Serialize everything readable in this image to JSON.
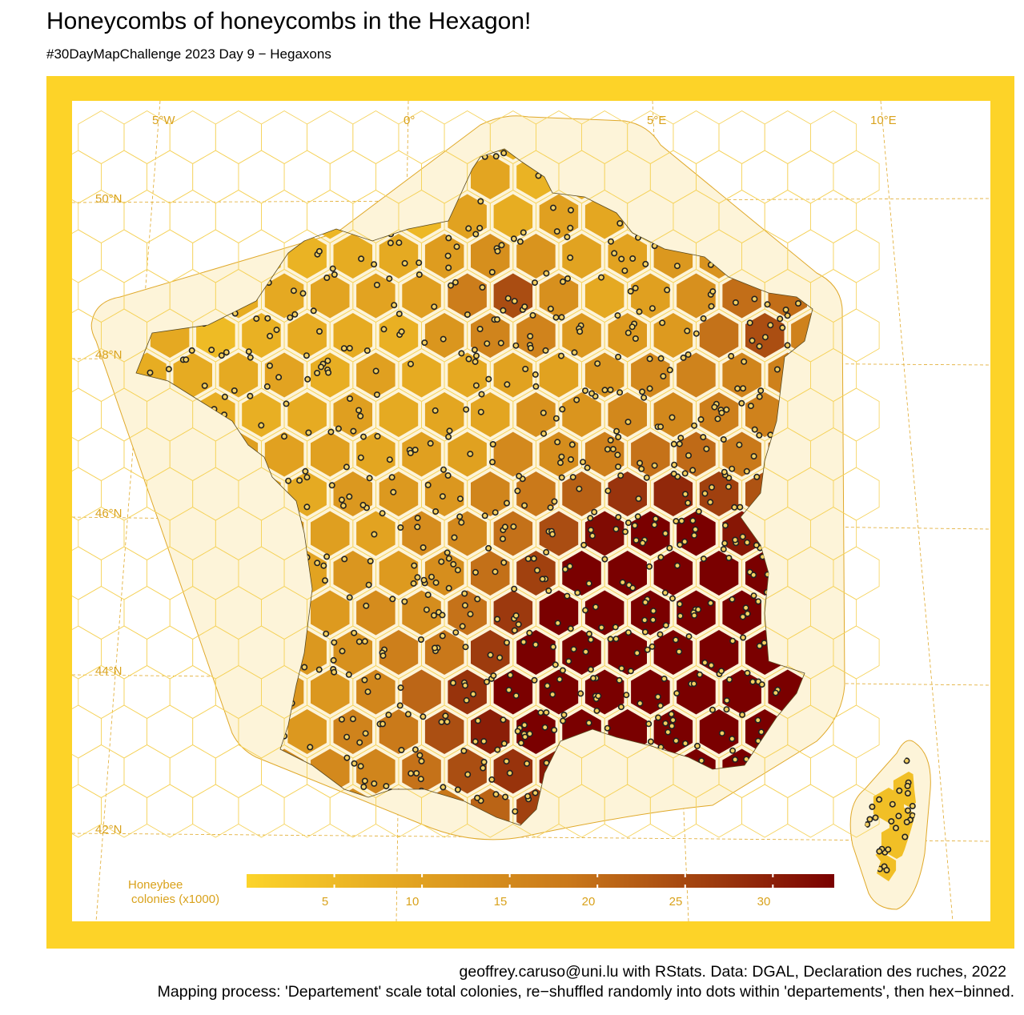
{
  "header": {
    "title": "Honeycombs of honeycombs in the Hexagon!",
    "subtitle": "#30DayMapChallenge 2023 Day 9 − Hegaxons"
  },
  "map": {
    "longitude_labels": [
      "5°W",
      "0°",
      "5°E",
      "10°E"
    ],
    "latitude_labels": [
      "50°N",
      "48°N",
      "46°N",
      "44°N",
      "42°N"
    ],
    "colors": {
      "frame": "#fdd328",
      "hull": "#fdf4d9",
      "hull_stroke": "#e0a92a",
      "graticule": "#e0a92a",
      "low": "#fcd42a",
      "high": "#7a0000",
      "dot_fill": "#f5d060",
      "dot_stroke": "#222222"
    }
  },
  "legend": {
    "title_line1": "Honeybee",
    "title_line2": "colonies (x1000)",
    "min": 0,
    "max": 33.5,
    "ticks": [
      "5",
      "10",
      "15",
      "20",
      "25",
      "30"
    ]
  },
  "footer": {
    "credit": "geoffrey.caruso@uni.lu with RStats. Data: DGAL, Declaration des ruches, 2022",
    "process": "Mapping process: 'Departement' scale total colonies, re−shuffled randomly into dots within 'departements', then hex−binned."
  }
}
